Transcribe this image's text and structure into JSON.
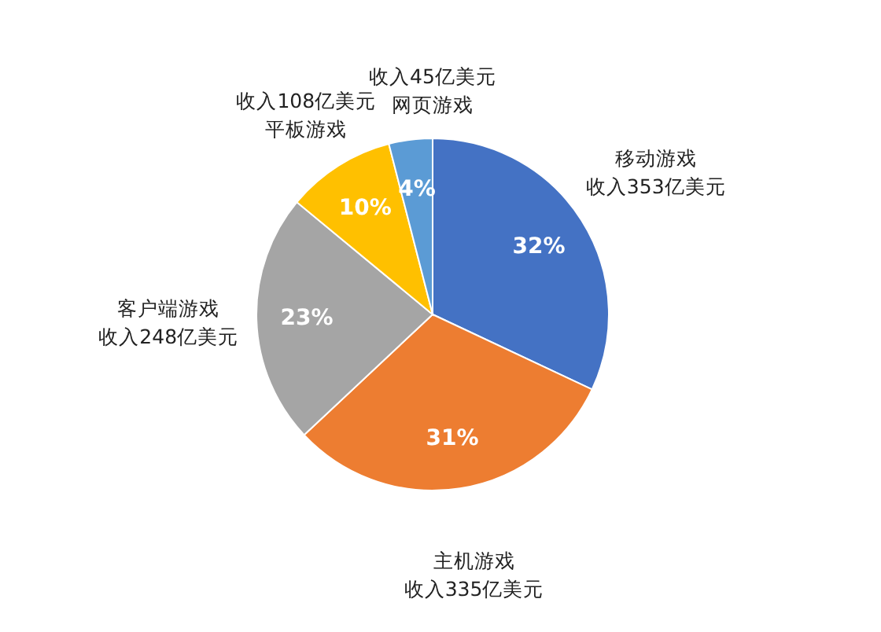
{
  "chart_data": {
    "type": "pie",
    "categories": [
      "移动游戏",
      "主机游戏",
      "客户端游戏",
      "平板游戏",
      "网页游戏"
    ],
    "values": [
      32,
      31,
      23,
      10,
      4
    ],
    "colors": [
      "#4472c4",
      "#ed7d31",
      "#a5a5a5",
      "#ffc000",
      "#5b9bd5"
    ],
    "value_labels": [
      "32%",
      "31%",
      "23%",
      "10%",
      "4%"
    ],
    "annotations": [
      {
        "text": "收入353亿美元",
        "x": "移动游戏"
      },
      {
        "text": "收入335亿美元",
        "x": "主机游戏"
      },
      {
        "text": "收入248亿美元",
        "x": "客户端游戏"
      },
      {
        "text": "收入108亿美元",
        "x": "平板游戏"
      },
      {
        "text": "收入45亿美元",
        "x": "网页游戏"
      }
    ]
  }
}
